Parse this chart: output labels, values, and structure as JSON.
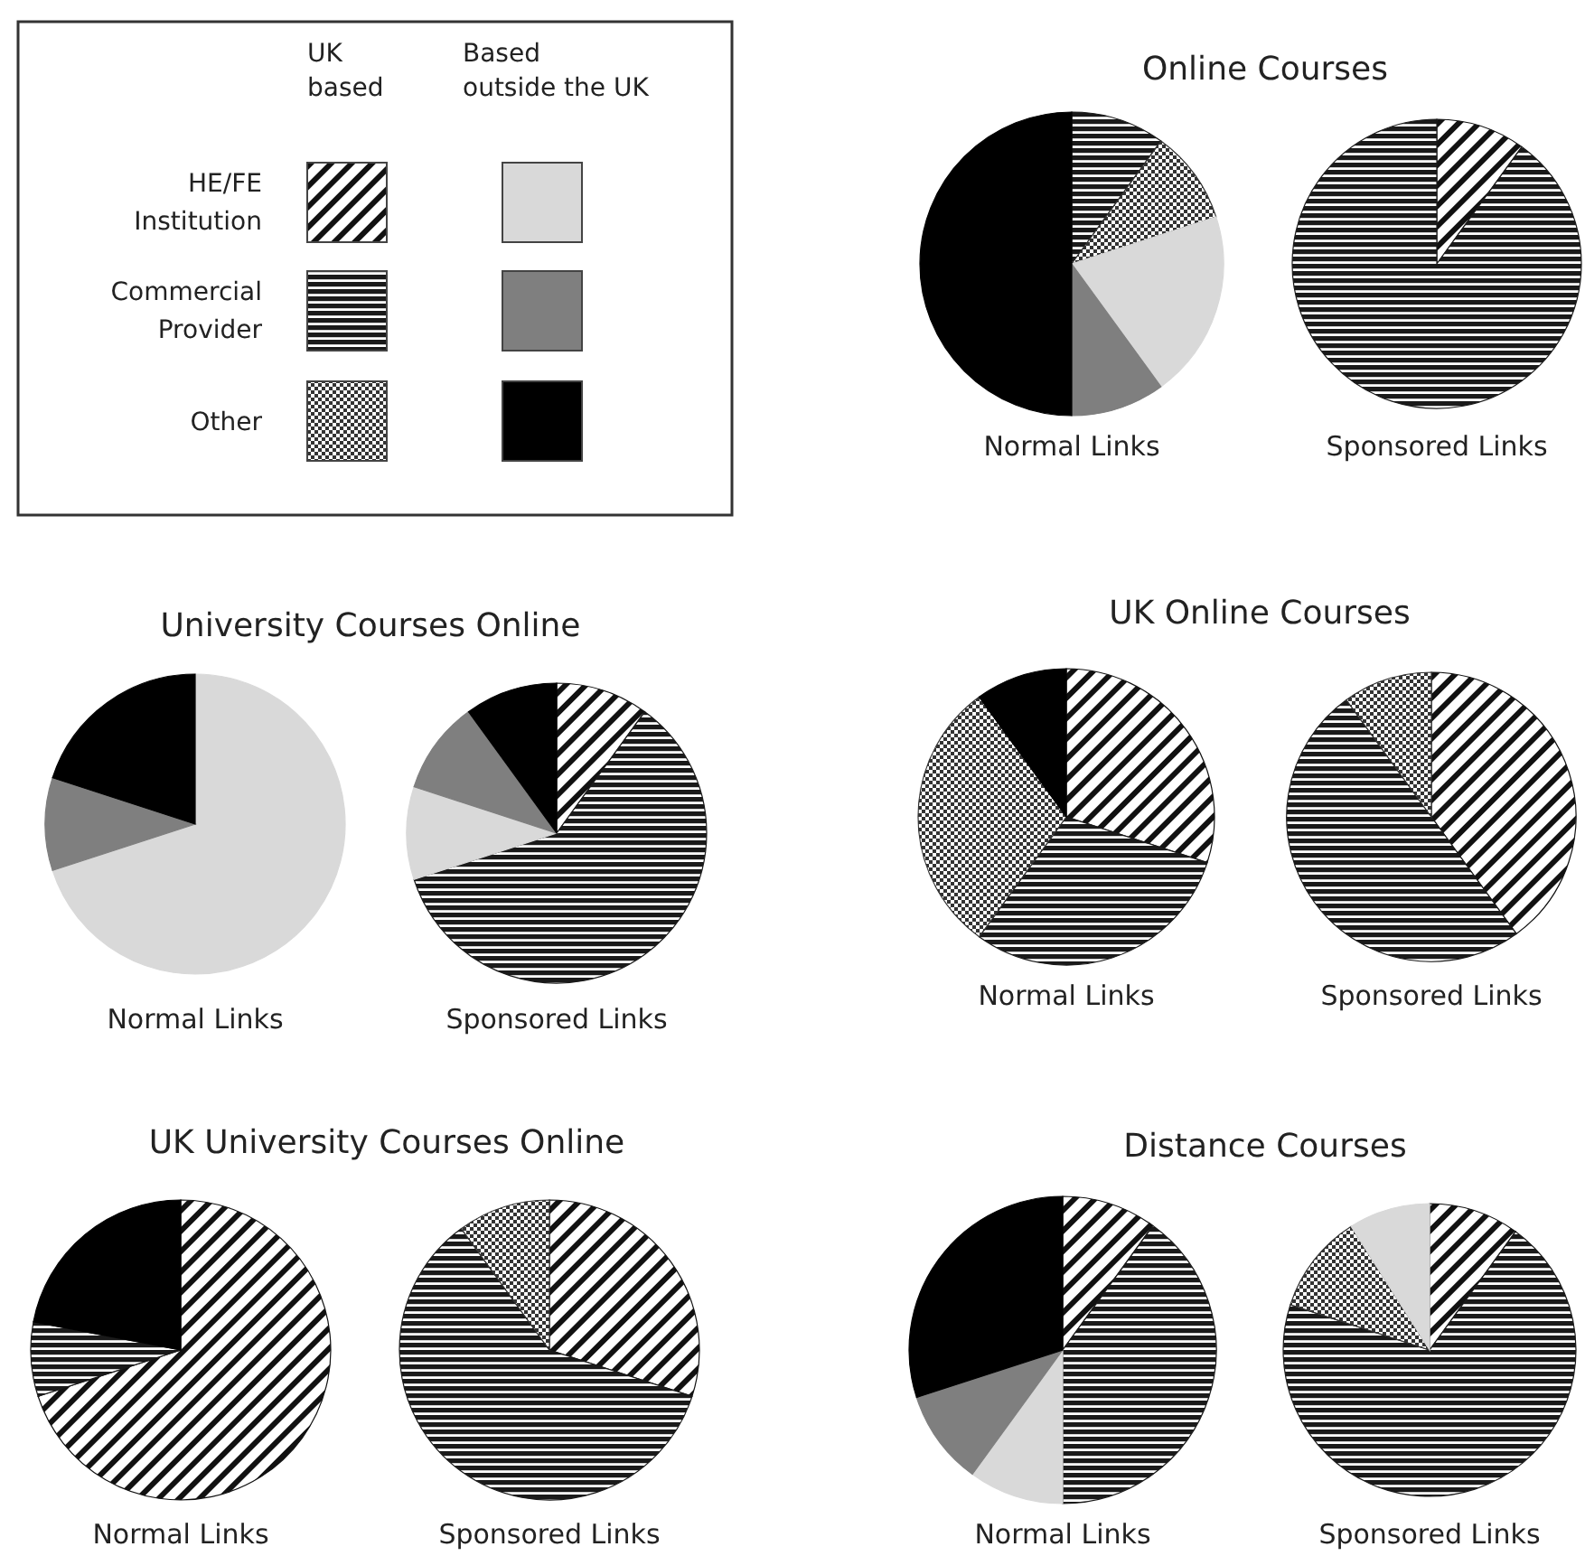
{
  "chart_data": [
    {
      "type": "other",
      "annotations": [
        "UK based",
        "Based outside the UK",
        "HE/FE Institution",
        "Commercial Provider",
        "Other"
      ],
      "colors": [
        "#111111",
        "#1a1a1a",
        "#333333",
        "#d9d9d9",
        "#7f7f7f",
        "#000000"
      ]
    },
    {
      "type": "pie",
      "title": "Online Courses",
      "xlabel": "Normal Links",
      "categories": [
        null,
        null,
        null,
        null,
        null
      ],
      "values": [
        10,
        10,
        20,
        10,
        50
      ],
      "colors": [
        "#1a1a1a",
        "#333333",
        "#d9d9d9",
        "#7f7f7f",
        "#000000"
      ]
    },
    {
      "type": "pie",
      "xlabel": "Sponsored Links",
      "categories": [
        null,
        null
      ],
      "values": [
        10,
        90
      ],
      "colors": [
        "#111111",
        "#1a1a1a"
      ]
    },
    {
      "type": "pie",
      "title": "University Courses Online",
      "xlabel": "Normal Links",
      "categories": [
        null,
        null,
        null
      ],
      "values": [
        70,
        10,
        20
      ],
      "colors": [
        "#d9d9d9",
        "#7f7f7f",
        "#000000"
      ]
    },
    {
      "type": "pie",
      "xlabel": "Sponsored Links",
      "categories": [
        null,
        null,
        null,
        null,
        null
      ],
      "values": [
        10,
        60,
        10,
        10,
        10
      ],
      "colors": [
        "#111111",
        "#1a1a1a",
        "#d9d9d9",
        "#7f7f7f",
        "#000000"
      ]
    },
    {
      "type": "pie",
      "title": "UK Online Courses",
      "xlabel": "Normal Links",
      "categories": [
        null,
        null,
        null,
        null
      ],
      "values": [
        30,
        30,
        30,
        10
      ],
      "colors": [
        "#111111",
        "#1a1a1a",
        "#333333",
        "#000000"
      ]
    },
    {
      "type": "pie",
      "xlabel": "Sponsored Links",
      "categories": [
        null,
        null,
        null
      ],
      "values": [
        40,
        50,
        10
      ],
      "colors": [
        "#111111",
        "#1a1a1a",
        "#333333"
      ]
    },
    {
      "type": "pie",
      "title": "UK University Courses Online",
      "xlabel": "Normal Links",
      "categories": [
        null,
        null,
        null
      ],
      "values": [
        70,
        8,
        22
      ],
      "colors": [
        "#111111",
        "#1a1a1a",
        "#000000"
      ]
    },
    {
      "type": "pie",
      "xlabel": "Sponsored Links",
      "categories": [
        null,
        null,
        null
      ],
      "values": [
        30,
        60,
        10
      ],
      "colors": [
        "#111111",
        "#1a1a1a",
        "#333333"
      ]
    },
    {
      "type": "pie",
      "title": "Distance Courses",
      "xlabel": "Normal Links",
      "categories": [
        null,
        null,
        null,
        null,
        null
      ],
      "values": [
        10,
        40,
        10,
        10,
        30
      ],
      "colors": [
        "#111111",
        "#1a1a1a",
        "#d9d9d9",
        "#7f7f7f",
        "#000000"
      ]
    },
    {
      "type": "pie",
      "xlabel": "Sponsored Links",
      "categories": [
        null,
        null,
        null,
        null
      ],
      "values": [
        10,
        70,
        11,
        9
      ],
      "colors": [
        "#111111",
        "#1a1a1a",
        "#333333",
        "#d9d9d9"
      ]
    }
  ]
}
